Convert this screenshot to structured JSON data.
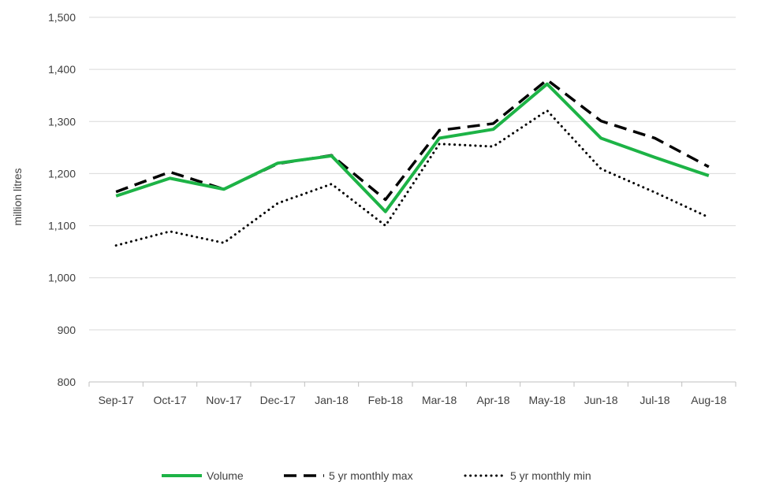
{
  "chart_data": {
    "type": "line",
    "title": "",
    "xlabel": "",
    "ylabel": "million litres",
    "categories": [
      "Sep-17",
      "Oct-17",
      "Nov-17",
      "Dec-17",
      "Jan-18",
      "Feb-18",
      "Mar-18",
      "Apr-18",
      "May-18",
      "Jun-18",
      "Jul-18",
      "Aug-18"
    ],
    "ylim": [
      800,
      1500
    ],
    "yticks": [
      800,
      900,
      1000,
      1100,
      1200,
      1300,
      1400,
      1500
    ],
    "ytick_labels": [
      "800",
      "900",
      "1,000",
      "1,100",
      "1,200",
      "1,300",
      "1,400",
      "1,500"
    ],
    "grid": "horizontal",
    "legend_position": "bottom",
    "series": [
      {
        "name": "Volume",
        "style": "solid",
        "color": "#1DB346",
        "values": [
          1157,
          1191,
          1170,
          1220,
          1234,
          1127,
          1268,
          1285,
          1372,
          1268,
          1231,
          1196
        ]
      },
      {
        "name": "5 yr monthly max",
        "style": "dashed",
        "color": "#000000",
        "values": [
          1165,
          1203,
          1170,
          1219,
          1235,
          1150,
          1283,
          1296,
          1380,
          1301,
          1268,
          1213
        ]
      },
      {
        "name": "5 yr monthly min",
        "style": "dotted",
        "color": "#000000",
        "values": [
          1062,
          1089,
          1067,
          1143,
          1180,
          1100,
          1257,
          1252,
          1321,
          1209,
          1164,
          1116
        ]
      }
    ]
  },
  "colors": {
    "gridline": "#d9d9d9",
    "axis": "#bfbfbf",
    "text": "#404040"
  }
}
